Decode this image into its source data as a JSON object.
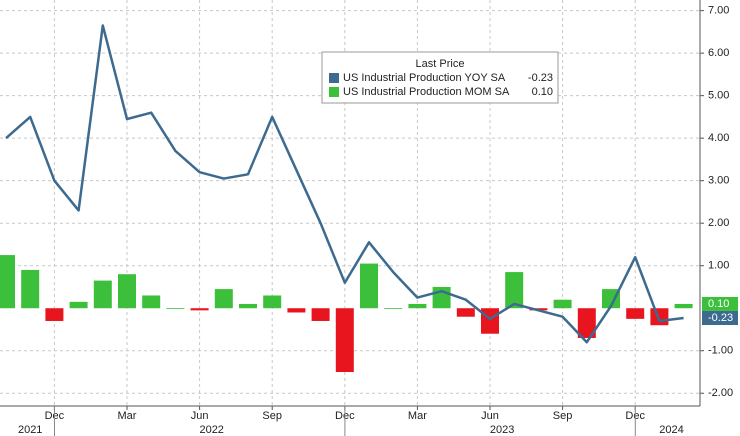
{
  "chart_data": {
    "type": "bar-line",
    "categories": [
      null,
      null,
      "Dec",
      null,
      null,
      "Mar",
      null,
      null,
      "Jun",
      null,
      null,
      "Sep",
      null,
      null,
      "Dec",
      null,
      null,
      "Mar",
      null,
      null,
      "Jun",
      null,
      null,
      "Sep",
      null,
      null,
      "Dec",
      null,
      null
    ],
    "x_groups": [
      {
        "label": "2021",
        "from": 0,
        "to": 2
      },
      {
        "label": "2022",
        "from": 3,
        "to": 14
      },
      {
        "label": "2023",
        "from": 15,
        "to": 26
      },
      {
        "label": "2024",
        "from": 27,
        "to": 28
      }
    ],
    "legend_title": "Last Price",
    "series": [
      {
        "name": "US Industrial Production YOY SA",
        "type": "line",
        "color": "#3d6a8f",
        "last_label": "-0.23",
        "values": [
          4.0,
          4.5,
          3.0,
          2.3,
          6.65,
          4.45,
          4.6,
          3.7,
          3.2,
          3.05,
          3.15,
          4.5,
          3.25,
          2.0,
          0.6,
          1.55,
          0.85,
          0.25,
          0.4,
          0.2,
          -0.25,
          0.1,
          -0.05,
          -0.2,
          -0.8,
          0.05,
          1.2,
          -0.3,
          -0.23
        ]
      },
      {
        "name": "US Industrial Production MOM SA",
        "type": "bar",
        "color": "#3cc03c",
        "negative_color": "#e8141e",
        "last_label": "0.10",
        "values": [
          1.25,
          0.9,
          -0.3,
          0.15,
          0.65,
          0.8,
          0.3,
          0.0,
          -0.05,
          0.45,
          0.1,
          0.3,
          -0.1,
          -0.3,
          -1.5,
          1.05,
          0.0,
          0.1,
          0.5,
          -0.2,
          -0.6,
          0.85,
          -0.05,
          0.2,
          -0.7,
          0.45,
          -0.25,
          -0.4,
          0.1
        ]
      }
    ],
    "ylim": [
      -2.3,
      7.25
    ],
    "yticks": [
      {
        "value": 7,
        "label": "7.00"
      },
      {
        "value": 6,
        "label": "6.00"
      },
      {
        "value": 5,
        "label": "5.00"
      },
      {
        "value": 4,
        "label": "4.00"
      },
      {
        "value": 3,
        "label": "3.00"
      },
      {
        "value": 2,
        "label": "2.00"
      },
      {
        "value": 1,
        "label": "1.00"
      },
      {
        "value": -1,
        "label": "-1.00"
      },
      {
        "value": -2,
        "label": "-2.00"
      }
    ],
    "grid": true
  }
}
